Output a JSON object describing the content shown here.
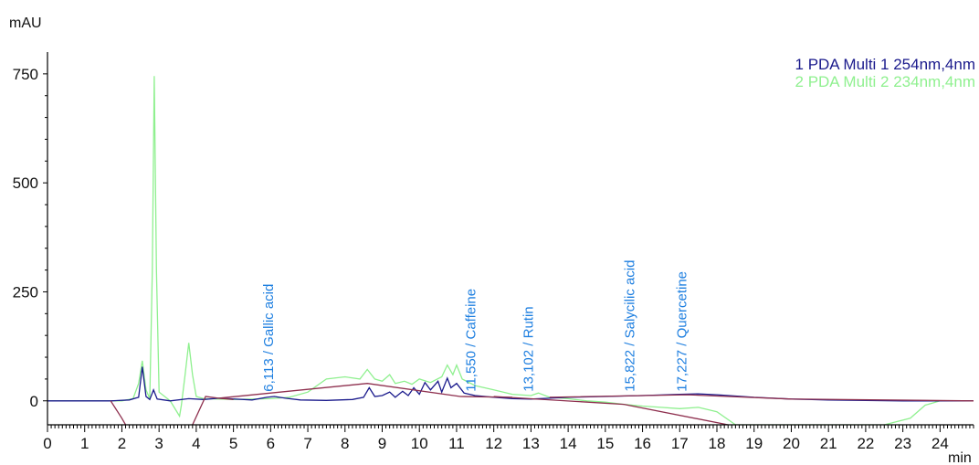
{
  "chart_data": {
    "type": "line",
    "ylabel": "mAU",
    "xlabel": "min",
    "xlim": [
      0,
      24.9
    ],
    "ylim": [
      -55,
      800
    ],
    "x_ticks": [
      0,
      1,
      2,
      3,
      4,
      5,
      6,
      7,
      8,
      9,
      10,
      11,
      12,
      13,
      14,
      15,
      16,
      17,
      18,
      19,
      20,
      21,
      22,
      23,
      24
    ],
    "y_ticks": [
      {
        "value": 0,
        "label": "0"
      },
      {
        "value": 250,
        "label": "250"
      },
      {
        "value": 500,
        "label": "500"
      },
      {
        "value": 750,
        "label": "750"
      }
    ],
    "grid": false,
    "legend_position": "top-right",
    "series": [
      {
        "name": "1 PDA Multi 1 254nm,4nm",
        "color": "#1a1a8c",
        "points": [
          [
            0,
            0
          ],
          [
            1.7,
            0
          ],
          [
            2.2,
            2
          ],
          [
            2.45,
            8
          ],
          [
            2.55,
            78
          ],
          [
            2.65,
            10
          ],
          [
            2.75,
            3
          ],
          [
            2.85,
            25
          ],
          [
            2.95,
            4
          ],
          [
            3.3,
            0
          ],
          [
            3.8,
            5
          ],
          [
            4.2,
            3
          ],
          [
            4.6,
            6
          ],
          [
            5.5,
            2
          ],
          [
            5.9,
            8
          ],
          [
            6.1,
            10
          ],
          [
            6.4,
            6
          ],
          [
            6.8,
            2
          ],
          [
            7.5,
            1
          ],
          [
            8.2,
            3
          ],
          [
            8.5,
            8
          ],
          [
            8.65,
            30
          ],
          [
            8.8,
            10
          ],
          [
            9.0,
            12
          ],
          [
            9.2,
            20
          ],
          [
            9.35,
            8
          ],
          [
            9.55,
            22
          ],
          [
            9.7,
            12
          ],
          [
            9.85,
            30
          ],
          [
            10.0,
            15
          ],
          [
            10.15,
            42
          ],
          [
            10.3,
            25
          ],
          [
            10.5,
            45
          ],
          [
            10.6,
            20
          ],
          [
            10.75,
            52
          ],
          [
            10.85,
            30
          ],
          [
            11.0,
            40
          ],
          [
            11.2,
            18
          ],
          [
            11.5,
            12
          ],
          [
            12.0,
            8
          ],
          [
            12.5,
            5
          ],
          [
            13.0,
            4
          ],
          [
            13.5,
            6
          ],
          [
            14.0,
            8
          ],
          [
            15.0,
            10
          ],
          [
            16.0,
            12
          ],
          [
            17.0,
            15
          ],
          [
            17.5,
            16
          ],
          [
            18.0,
            14
          ],
          [
            19.0,
            8
          ],
          [
            20.0,
            4
          ],
          [
            21.0,
            2
          ],
          [
            22.0,
            1
          ],
          [
            23.0,
            0
          ],
          [
            24.9,
            0
          ]
        ]
      },
      {
        "name": "2 PDA Multi 2 234nm,4nm",
        "color": "#8ff08f",
        "points": [
          [
            0,
            0
          ],
          [
            2.0,
            0
          ],
          [
            2.3,
            5
          ],
          [
            2.45,
            40
          ],
          [
            2.55,
            92
          ],
          [
            2.65,
            25
          ],
          [
            2.75,
            5
          ],
          [
            2.82,
            300
          ],
          [
            2.87,
            745
          ],
          [
            2.93,
            300
          ],
          [
            3.0,
            20
          ],
          [
            3.3,
            0
          ],
          [
            3.55,
            -35
          ],
          [
            3.6,
            -10
          ],
          [
            3.7,
            60
          ],
          [
            3.8,
            133
          ],
          [
            3.9,
            60
          ],
          [
            4.0,
            10
          ],
          [
            4.2,
            5
          ],
          [
            5.0,
            3
          ],
          [
            6.0,
            5
          ],
          [
            6.5,
            8
          ],
          [
            7.0,
            20
          ],
          [
            7.5,
            50
          ],
          [
            8.0,
            55
          ],
          [
            8.4,
            50
          ],
          [
            8.6,
            72
          ],
          [
            8.8,
            50
          ],
          [
            9.0,
            45
          ],
          [
            9.2,
            60
          ],
          [
            9.35,
            40
          ],
          [
            9.6,
            45
          ],
          [
            9.8,
            38
          ],
          [
            10.0,
            50
          ],
          [
            10.3,
            42
          ],
          [
            10.6,
            55
          ],
          [
            10.75,
            82
          ],
          [
            10.9,
            60
          ],
          [
            11.0,
            82
          ],
          [
            11.15,
            50
          ],
          [
            11.5,
            35
          ],
          [
            12.0,
            25
          ],
          [
            12.5,
            15
          ],
          [
            13.0,
            12
          ],
          [
            13.2,
            18
          ],
          [
            13.5,
            8
          ],
          [
            14.0,
            5
          ],
          [
            14.5,
            0
          ],
          [
            15.0,
            -3
          ],
          [
            15.5,
            -8
          ],
          [
            16.0,
            -12
          ],
          [
            16.5,
            -15
          ],
          [
            17.0,
            -18
          ],
          [
            17.5,
            -15
          ],
          [
            18.0,
            -25
          ],
          [
            18.5,
            -55
          ],
          [
            19.0,
            -55
          ],
          [
            22.5,
            -55
          ],
          [
            23.2,
            -40
          ],
          [
            23.6,
            -10
          ],
          [
            24.0,
            0
          ],
          [
            24.9,
            0
          ]
        ]
      }
    ],
    "baselines": [
      {
        "color": "#8e2f4e",
        "points": [
          [
            1.7,
            0
          ],
          [
            2.0,
            -40
          ],
          [
            2.1,
            -55
          ]
        ]
      },
      {
        "color": "#8e2f4e",
        "points": [
          [
            3.9,
            -55
          ],
          [
            4.25,
            10
          ],
          [
            4.6,
            6
          ],
          [
            5.0,
            3
          ]
        ]
      },
      {
        "color": "#8e2f4e",
        "points": [
          [
            4.6,
            6
          ],
          [
            8.6,
            40
          ],
          [
            11.1,
            10
          ],
          [
            12.5,
            8
          ]
        ]
      },
      {
        "color": "#8e2f4e",
        "points": [
          [
            12.0,
            10
          ],
          [
            15.5,
            -8
          ],
          [
            18.3,
            -55
          ]
        ]
      },
      {
        "color": "#8e2f4e",
        "points": [
          [
            13.5,
            8
          ],
          [
            17.2,
            14
          ],
          [
            20.0,
            4
          ],
          [
            24.9,
            0
          ]
        ]
      }
    ],
    "annotations": [
      {
        "x": 6.113,
        "text": "6,113 / Gallic acid"
      },
      {
        "x": 11.55,
        "text": "11,550 / Caffeine"
      },
      {
        "x": 13.102,
        "text": "13,102 / Rutin"
      },
      {
        "x": 15.822,
        "text": "15,822 / Salycilic acid"
      },
      {
        "x": 17.227,
        "text": "17,227 / Quercetine"
      }
    ]
  }
}
